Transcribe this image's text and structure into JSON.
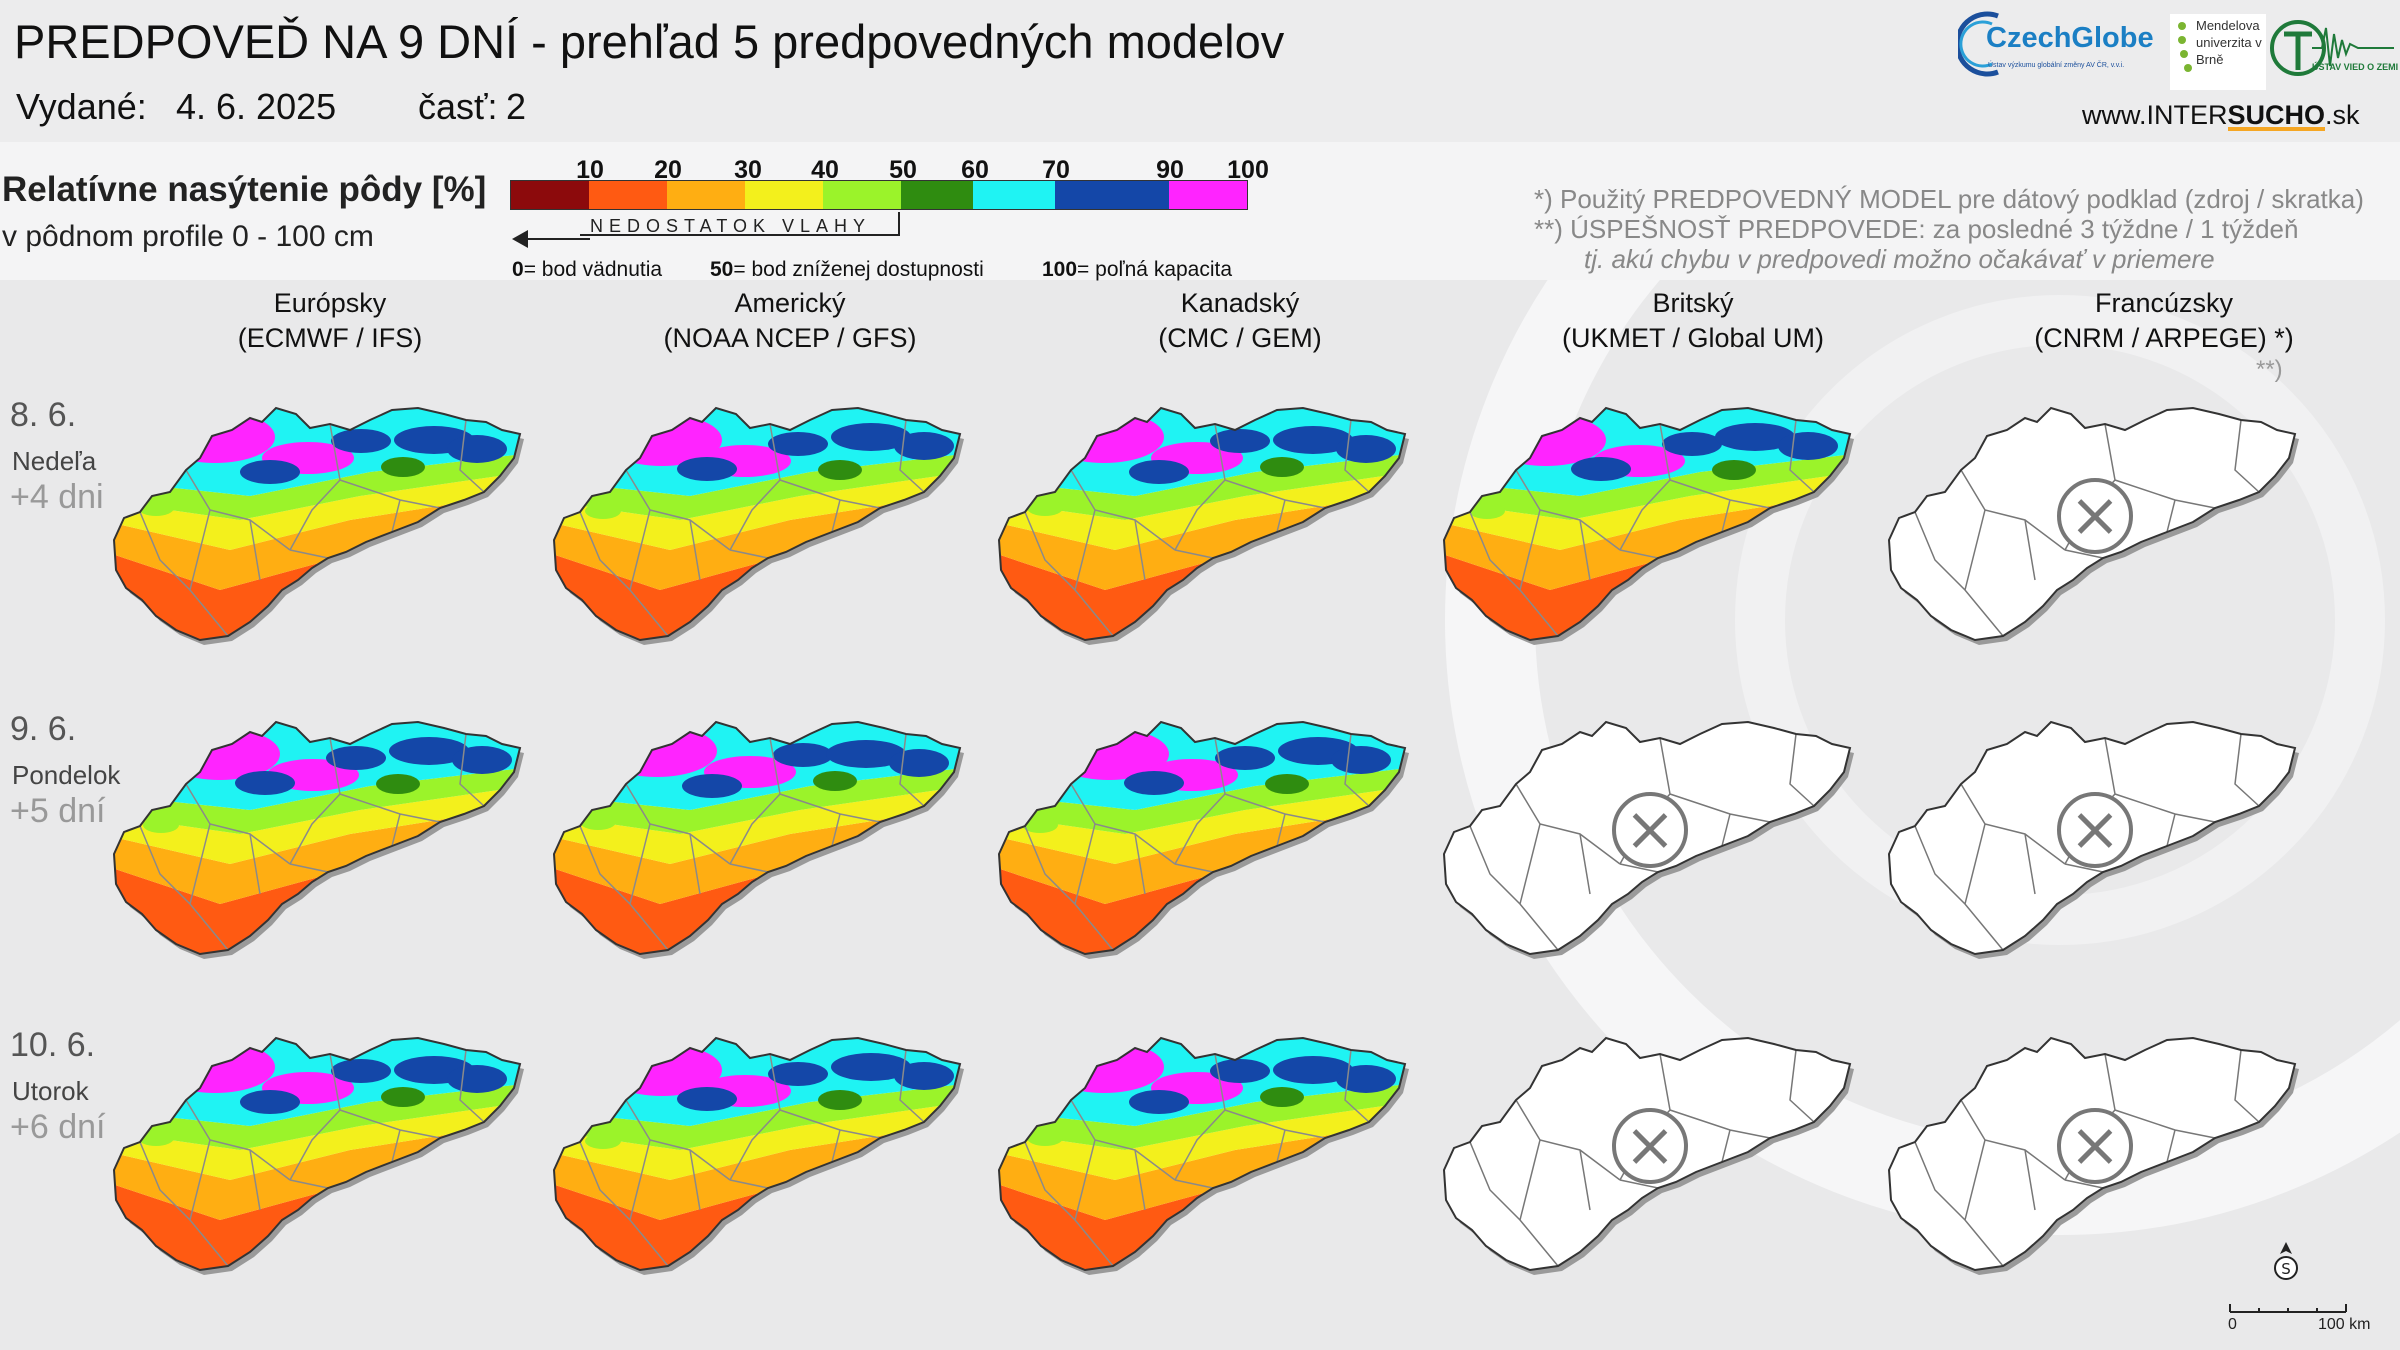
{
  "header": {
    "title": "PREDPOVEĎ NA 9 DNÍ - prehľad 5 predpovedných modelov",
    "issued_label": "Vydané:",
    "issued_date": "4. 6. 2025",
    "part_label": "časť:",
    "part_value": "2",
    "website_prefix": "www.INTER",
    "website_bold": "SUCHO",
    "website_suffix": ".sk",
    "logos": {
      "czechglobe": "CzechGlobe",
      "czechglobe_sub": "Ústav výzkumu globální změny AV ČR, v.v.i.",
      "mendel": "Mendelova univerzita v Brně",
      "uvz": "ÚSTAV VIED O ZEMI"
    }
  },
  "legend": {
    "title": "Relatívne nasýtenie pôdy [%]",
    "subtitle": "v pôdnom profile 0 - 100 cm",
    "ticks": [
      "10",
      "20",
      "30",
      "40",
      "50",
      "60",
      "70",
      "90",
      "100"
    ],
    "colors": [
      "#8c0a0c",
      "#ff5a12",
      "#ffae12",
      "#f3f01c",
      "#9bf32a",
      "#2f8c10",
      "#1ff3f3",
      "#1447a8",
      "#ff24ff"
    ],
    "deficit_label": "NEDOSTATOK VLAHY",
    "note_0_num": "0",
    "note_0_text": "= bod vädnutia",
    "note_50_num": "50",
    "note_50_text": "= bod zníženej dostupnosti",
    "note_100_num": "100",
    "note_100_text": "= poľná kapacita"
  },
  "notes": {
    "model_note": "*)   Použitý PREDPOVEDNÝ MODEL pre dátový podklad (zdroj / skratka)",
    "accuracy_note": "**) ÚSPEŠNOSŤ PREDPOVEDE: za posledné 3 týždne / 1 týždeň",
    "accuracy_sub": "tj. akú chybu v predpovedi možno očakávať v priemere",
    "stars": "**)"
  },
  "models": [
    {
      "name": "Európsky",
      "code": "(ECMWF / IFS)"
    },
    {
      "name": "Americký",
      "code": "(NOAA NCEP / GFS)"
    },
    {
      "name": "Kanadský",
      "code": "(CMC / GEM)"
    },
    {
      "name": "Britský",
      "code": "(UKMET / Global UM)"
    },
    {
      "name": "Francúzsky",
      "code": "(CNRM / ARPEGE) *)"
    }
  ],
  "rows": [
    {
      "date": "8. 6.",
      "day": "Nedeľa",
      "offset": "+4 dni",
      "available": [
        true,
        true,
        true,
        true,
        false
      ]
    },
    {
      "date": "9. 6.",
      "day": "Pondelok",
      "offset": "+5 dní",
      "available": [
        true,
        true,
        true,
        false,
        false
      ]
    },
    {
      "date": "10. 6.",
      "day": "Utorok",
      "offset": "+6 dní",
      "available": [
        true,
        true,
        true,
        false,
        false
      ]
    }
  ],
  "scale": {
    "zero": "0",
    "hundred": "100 km"
  }
}
